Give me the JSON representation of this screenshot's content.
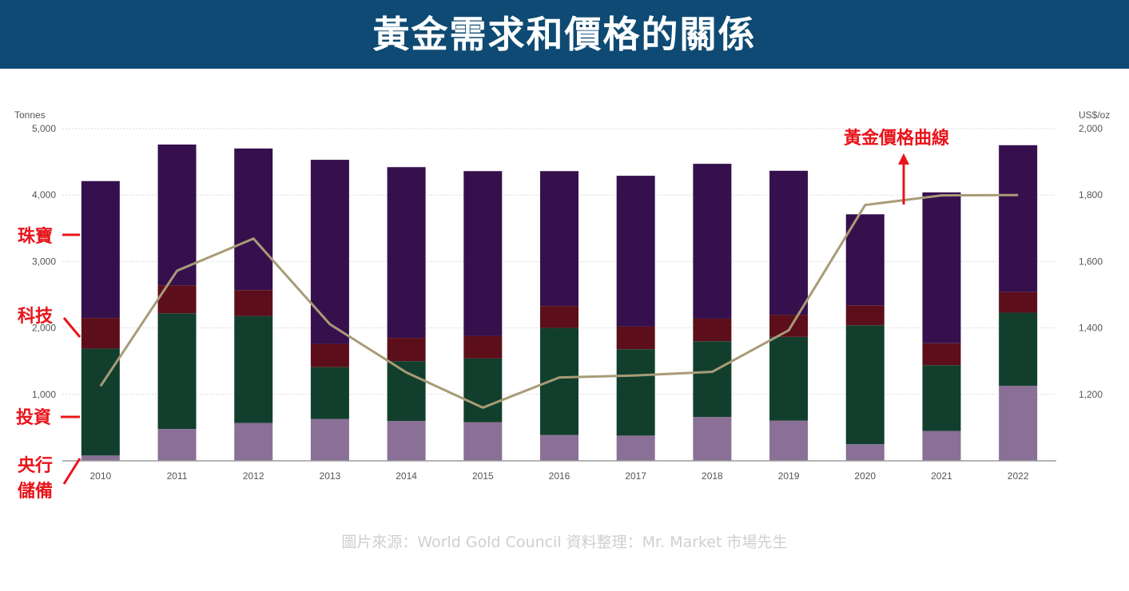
{
  "header": {
    "title": "黃金需求和價格的關係"
  },
  "source_note": "圖片來源：World Gold Council 資料整理：Mr. Market 市場先生",
  "colors": {
    "header_bg": "#0e4a73",
    "jewelry": "#36104d",
    "technology": "#5c0f1a",
    "investment": "#123f2d",
    "central_banks": "#8a7096",
    "price_line": "#a89b77",
    "annotation": "#e8141b"
  },
  "chart_data": {
    "type": "bar",
    "stacked": true,
    "title": "黃金需求和價格的關係",
    "ylabel": "Tonnes",
    "y2label": "US$/oz",
    "ylim": [
      0,
      5000
    ],
    "y2lim": [
      1000,
      2000
    ],
    "yticks": [
      "1,000",
      "2,000",
      "3,000",
      "4,000",
      "5,000"
    ],
    "y2ticks": [
      "1,200",
      "1,400",
      "1,600",
      "1,800",
      "2,000"
    ],
    "categories": [
      "2010",
      "2011",
      "2012",
      "2013",
      "2014",
      "2015",
      "2016",
      "2017",
      "2018",
      "2019",
      "2020",
      "2021",
      "2022"
    ],
    "series": [
      {
        "name": "央行儲備",
        "values": [
          80,
          480,
          570,
          630,
          600,
          580,
          390,
          380,
          660,
          605,
          250,
          450,
          1130
        ]
      },
      {
        "name": "投資",
        "values": [
          1610,
          1740,
          1610,
          780,
          900,
          960,
          1610,
          1300,
          1140,
          1260,
          1790,
          990,
          1100
        ]
      },
      {
        "name": "科技",
        "values": [
          460,
          420,
          390,
          350,
          350,
          340,
          330,
          340,
          340,
          330,
          300,
          330,
          310
        ]
      },
      {
        "name": "珠寶",
        "values": [
          2060,
          2120,
          2130,
          2770,
          2570,
          2480,
          2030,
          2270,
          2330,
          2170,
          1370,
          2270,
          2210
        ]
      }
    ],
    "line": {
      "name": "黃金價格曲線",
      "axis": "right",
      "values": [
        1225,
        1572,
        1669,
        1411,
        1266,
        1160,
        1251,
        1257,
        1268,
        1393,
        1770,
        1799,
        1800
      ]
    },
    "annotations": {
      "jewelry": "珠寶",
      "technology": "科技",
      "investment": "投資",
      "central_banks": "央行儲備",
      "price_line": "黃金價格曲線"
    }
  }
}
